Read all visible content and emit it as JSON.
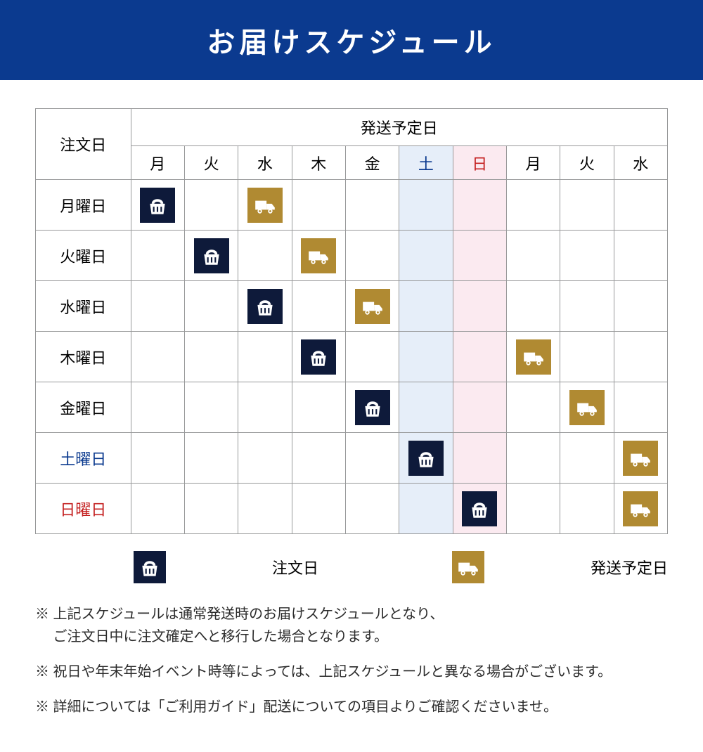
{
  "header": {
    "title": "お届けスケジュール"
  },
  "table": {
    "corner_label": "注文日",
    "ship_header": "発送予定日",
    "day_headers": [
      "月",
      "火",
      "水",
      "木",
      "金",
      "土",
      "日",
      "月",
      "火",
      "水"
    ],
    "sat_col_index": 5,
    "sun_col_index": 6,
    "rows": [
      {
        "label": "月曜日",
        "label_class": "",
        "order_col": 0,
        "ship_col": 2
      },
      {
        "label": "火曜日",
        "label_class": "",
        "order_col": 1,
        "ship_col": 3
      },
      {
        "label": "水曜日",
        "label_class": "",
        "order_col": 2,
        "ship_col": 4
      },
      {
        "label": "木曜日",
        "label_class": "",
        "order_col": 3,
        "ship_col": 7
      },
      {
        "label": "金曜日",
        "label_class": "",
        "order_col": 4,
        "ship_col": 8
      },
      {
        "label": "土曜日",
        "label_class": "sat-label",
        "order_col": 5,
        "ship_col": 9
      },
      {
        "label": "日曜日",
        "label_class": "sun-label",
        "order_col": 6,
        "ship_col": 9
      }
    ]
  },
  "legend": {
    "order_label": "注文日",
    "ship_label": "発送予定日"
  },
  "notes": [
    "※ 上記スケジュールは通常発送時のお届けスケジュールとなり、\n　 ご注文日中に注文確定へと移行した場合となります。",
    "※ 祝日や年末年始イベント時等によっては、上記スケジュールと異なる場合がございます。",
    "※ 詳細については「ご利用ガイド」配送についての項目よりご確認くださいませ。"
  ],
  "colors": {
    "header_bg": "#0b3a8f",
    "order_icon_bg": "#0e1a3a",
    "ship_icon_bg": "#b08a32",
    "sat_bg": "#e6eef9",
    "sun_bg": "#fbeaf0",
    "border": "#98999a"
  }
}
